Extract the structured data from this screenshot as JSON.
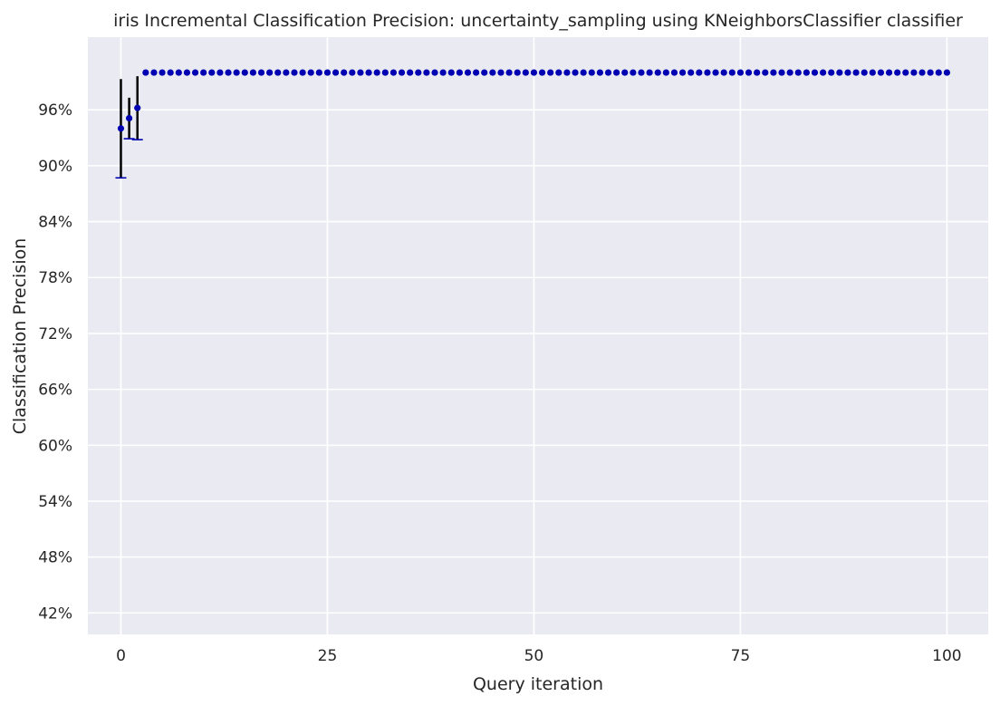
{
  "chart_data": {
    "type": "scatter",
    "title": "iris Incremental Classification Precision: uncertainty_sampling using KNeighborsClassifier classifier",
    "xlabel": "Query iteration",
    "ylabel": "Classification Precision",
    "xlim": [
      -4,
      105
    ],
    "ylim": [
      39.7,
      103.8
    ],
    "x_ticks": [
      0,
      25,
      50,
      75,
      100
    ],
    "x_tick_labels": [
      "0",
      "25",
      "50",
      "75",
      "100"
    ],
    "y_ticks": [
      42,
      48,
      54,
      60,
      66,
      72,
      78,
      84,
      90,
      96
    ],
    "y_tick_labels": [
      "42%",
      "48%",
      "54%",
      "60%",
      "66%",
      "72%",
      "78%",
      "84%",
      "90%",
      "96%"
    ],
    "grid": true,
    "background": "#eaeaf2",
    "grid_color": "#ffffff",
    "marker_color": "#0000b3",
    "errorbar_color": "#000000",
    "cap_color": "#0000b3",
    "series": [
      {
        "x": [
          0,
          1,
          2,
          3,
          4,
          5,
          6,
          7,
          8,
          9,
          10,
          11,
          12,
          13,
          14,
          15,
          16,
          17,
          18,
          19,
          20,
          21,
          22,
          23,
          24,
          25,
          26,
          27,
          28,
          29,
          30,
          31,
          32,
          33,
          34,
          35,
          36,
          37,
          38,
          39,
          40,
          41,
          42,
          43,
          44,
          45,
          46,
          47,
          48,
          49,
          50,
          51,
          52,
          53,
          54,
          55,
          56,
          57,
          58,
          59,
          60,
          61,
          62,
          63,
          64,
          65,
          66,
          67,
          68,
          69,
          70,
          71,
          72,
          73,
          74,
          75,
          76,
          77,
          78,
          79,
          80,
          81,
          82,
          83,
          84,
          85,
          86,
          87,
          88,
          89,
          90,
          91,
          92,
          93,
          94,
          95,
          96,
          97,
          98,
          99,
          100
        ],
        "y": [
          94.0,
          95.1,
          96.2,
          100,
          100,
          100,
          100,
          100,
          100,
          100,
          100,
          100,
          100,
          100,
          100,
          100,
          100,
          100,
          100,
          100,
          100,
          100,
          100,
          100,
          100,
          100,
          100,
          100,
          100,
          100,
          100,
          100,
          100,
          100,
          100,
          100,
          100,
          100,
          100,
          100,
          100,
          100,
          100,
          100,
          100,
          100,
          100,
          100,
          100,
          100,
          100,
          100,
          100,
          100,
          100,
          100,
          100,
          100,
          100,
          100,
          100,
          100,
          100,
          100,
          100,
          100,
          100,
          100,
          100,
          100,
          100,
          100,
          100,
          100,
          100,
          100,
          100,
          100,
          100,
          100,
          100,
          100,
          100,
          100,
          100,
          100,
          100,
          100,
          100,
          100,
          100,
          100,
          100,
          100,
          100,
          100,
          100,
          100,
          100,
          100,
          100
        ],
        "yerr": [
          5.3,
          2.2,
          3.4,
          0,
          0,
          0,
          0,
          0,
          0,
          0,
          0,
          0,
          0,
          0,
          0,
          0,
          0,
          0,
          0,
          0,
          0,
          0,
          0,
          0,
          0,
          0,
          0,
          0,
          0,
          0,
          0,
          0,
          0,
          0,
          0,
          0,
          0,
          0,
          0,
          0,
          0,
          0,
          0,
          0,
          0,
          0,
          0,
          0,
          0,
          0,
          0,
          0,
          0,
          0,
          0,
          0,
          0,
          0,
          0,
          0,
          0,
          0,
          0,
          0,
          0,
          0,
          0,
          0,
          0,
          0,
          0,
          0,
          0,
          0,
          0,
          0,
          0,
          0,
          0,
          0,
          0,
          0,
          0,
          0,
          0,
          0,
          0,
          0,
          0,
          0,
          0,
          0,
          0,
          0,
          0,
          0,
          0,
          0,
          0,
          0,
          0
        ]
      }
    ]
  }
}
